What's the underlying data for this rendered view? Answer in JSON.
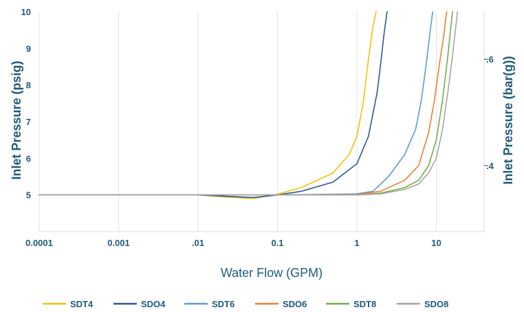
{
  "chart_data": {
    "type": "line",
    "xlabel": "Water Flow (GPM)",
    "ylabel": "Inlet Pressure (psig)",
    "y2label": "Inlet Pressure (bar(g))",
    "x_scale": "log",
    "xlim": [
      0.0001,
      40
    ],
    "ylim": [
      4,
      10
    ],
    "x_ticks": [
      "0.0001",
      "0.001",
      ".01",
      "0.1",
      "1",
      "10"
    ],
    "y_ticks": [
      "5",
      "6",
      "7",
      "8",
      "9",
      "10"
    ],
    "y2_ticks": [
      ".4",
      ".6"
    ],
    "grid": "vertical",
    "legend_position": "bottom",
    "series": [
      {
        "name": "SDT4",
        "color": "#F2C200",
        "x": [
          0.0001,
          0.01,
          0.02,
          0.05,
          0.1,
          0.2,
          0.5,
          0.8,
          1.0,
          1.2,
          1.4,
          1.6,
          1.75
        ],
        "y": [
          5.0,
          5.0,
          4.95,
          4.9,
          5.02,
          5.2,
          5.6,
          6.1,
          6.6,
          7.5,
          8.7,
          9.6,
          10.0
        ]
      },
      {
        "name": "SDO4",
        "color": "#2F5597",
        "x": [
          0.0001,
          0.01,
          0.05,
          0.1,
          0.2,
          0.5,
          1.0,
          1.4,
          1.8,
          2.0,
          2.2,
          2.4
        ],
        "y": [
          5.0,
          5.0,
          4.93,
          5.0,
          5.1,
          5.35,
          5.85,
          6.6,
          7.8,
          8.6,
          9.4,
          10.0
        ]
      },
      {
        "name": "SDT6",
        "color": "#5B9BD5",
        "x": [
          0.0001,
          0.01,
          0.1,
          1.0,
          1.6,
          2.5,
          4.0,
          5.5,
          6.5,
          7.5,
          8.3,
          9.0
        ],
        "y": [
          5.0,
          5.0,
          5.0,
          5.03,
          5.1,
          5.5,
          6.1,
          6.8,
          7.6,
          8.6,
          9.4,
          10.0
        ]
      },
      {
        "name": "SDO6",
        "color": "#ED7D31",
        "x": [
          0.0001,
          0.1,
          1.0,
          2.0,
          4.0,
          6.0,
          8.0,
          9.5,
          11.0,
          12.5,
          13.5
        ],
        "y": [
          5.0,
          5.0,
          5.01,
          5.1,
          5.4,
          5.8,
          6.7,
          7.6,
          8.6,
          9.4,
          10.0
        ]
      },
      {
        "name": "SDT8",
        "color": "#70AD47",
        "x": [
          0.0001,
          0.1,
          1.0,
          2.0,
          4.0,
          6.0,
          8.0,
          10.0,
          12.0,
          14.0,
          16.0
        ],
        "y": [
          5.0,
          5.0,
          5.0,
          5.05,
          5.2,
          5.4,
          5.8,
          6.5,
          7.6,
          8.8,
          10.0
        ]
      },
      {
        "name": "SDO8",
        "color": "#A5A5A5",
        "x": [
          0.0001,
          0.1,
          1.0,
          2.0,
          4.0,
          6.0,
          8.0,
          10.0,
          12.0,
          14.0,
          16.0,
          18.5
        ],
        "y": [
          5.0,
          5.0,
          5.0,
          5.03,
          5.15,
          5.3,
          5.6,
          6.0,
          6.8,
          7.8,
          8.8,
          10.0
        ]
      }
    ]
  }
}
